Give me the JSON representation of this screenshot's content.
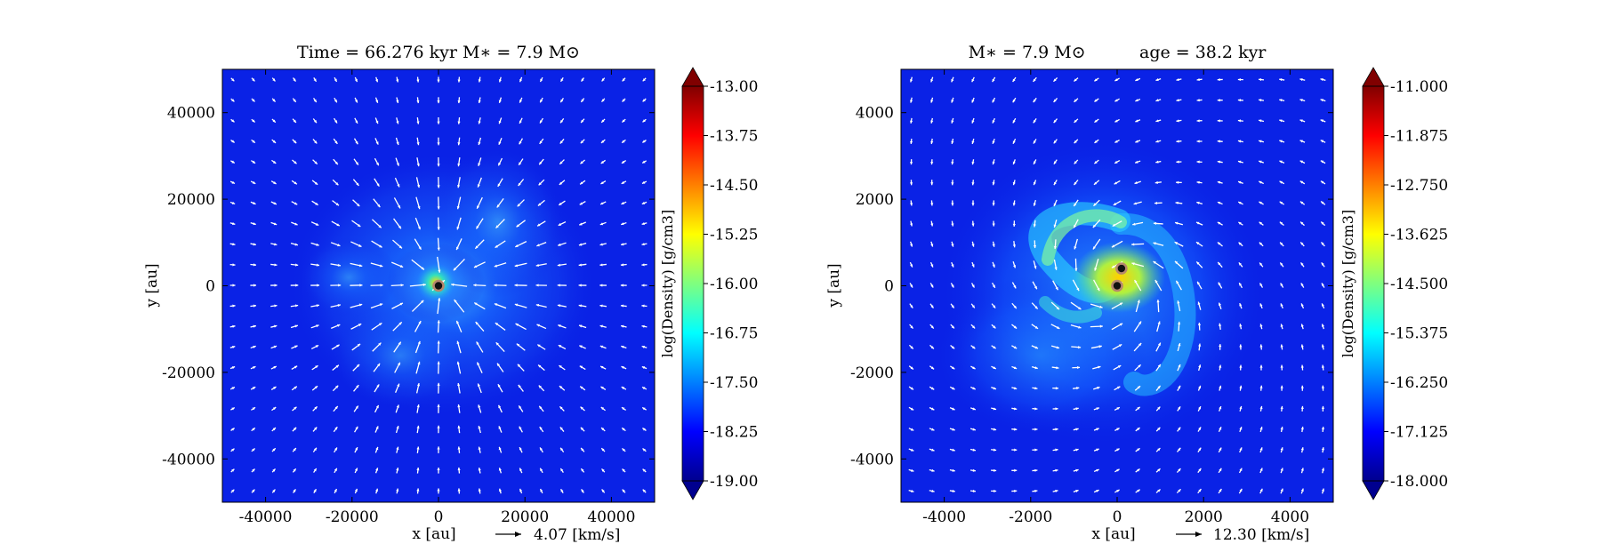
{
  "chart_data": [
    {
      "type": "heatmap",
      "subtype": "density-map-with-velocity-vectors",
      "title": "Time = 66.276 kyr    M∗ = 7.9 M⊙",
      "xlabel": "x [au]",
      "ylabel": "y [au]",
      "xlim": [
        -50000,
        50000
      ],
      "ylim": [
        -50000,
        50000
      ],
      "xticks": [
        -40000,
        -20000,
        0,
        20000,
        40000
      ],
      "yticks": [
        -40000,
        -20000,
        0,
        20000,
        40000
      ],
      "xtick_labels": [
        "-40000",
        "-20000",
        "0",
        "20000",
        "40000"
      ],
      "ytick_labels": [
        "-40000",
        "-20000",
        "0",
        "20000",
        "40000"
      ],
      "grid": false,
      "colorbar": {
        "label": "log(Density) [g/cm3]",
        "range": [
          -19.0,
          -13.0
        ],
        "ticks": [
          "-13.00",
          "-13.75",
          "-14.50",
          "-15.25",
          "-16.00",
          "-16.75",
          "-17.50",
          "-18.25",
          "-19.00"
        ],
        "colormap": "jet",
        "extend": "both"
      },
      "vector_key": {
        "label": "4.07 [km/s]"
      },
      "velocity_field": "radial-infall",
      "sinks": [
        {
          "x": 0,
          "y": 0
        }
      ]
    },
    {
      "type": "heatmap",
      "subtype": "density-map-with-velocity-vectors",
      "title": "M∗ = 7.9 M⊙          age = 38.2 kyr",
      "xlabel": "x [au]",
      "ylabel": "y [au]",
      "xlim": [
        -5000,
        5000
      ],
      "ylim": [
        -5000,
        5000
      ],
      "xticks": [
        -4000,
        -2000,
        0,
        2000,
        4000
      ],
      "yticks": [
        -4000,
        -2000,
        0,
        2000,
        4000
      ],
      "xtick_labels": [
        "-4000",
        "-2000",
        "0",
        "2000",
        "4000"
      ],
      "ytick_labels": [
        "-4000",
        "-2000",
        "0",
        "2000",
        "4000"
      ],
      "grid": false,
      "colorbar": {
        "label": "log(Density) [g/cm3]",
        "range": [
          -18.0,
          -11.0
        ],
        "ticks": [
          "-11.000",
          "-11.875",
          "-12.750",
          "-13.625",
          "-14.500",
          "-15.375",
          "-16.250",
          "-17.125",
          "-18.000"
        ],
        "colormap": "jet",
        "extend": "both"
      },
      "vector_key": {
        "label": "12.30 [km/s]"
      },
      "velocity_field": "rotating-spiral-infall",
      "sinks": [
        {
          "x": 100,
          "y": 400
        },
        {
          "x": 0,
          "y": 0
        }
      ]
    }
  ],
  "colors": {
    "background_low": "#00008f",
    "field": "#0a22e6",
    "vector": "#ffffff",
    "sink_ring": "#b5876c"
  }
}
